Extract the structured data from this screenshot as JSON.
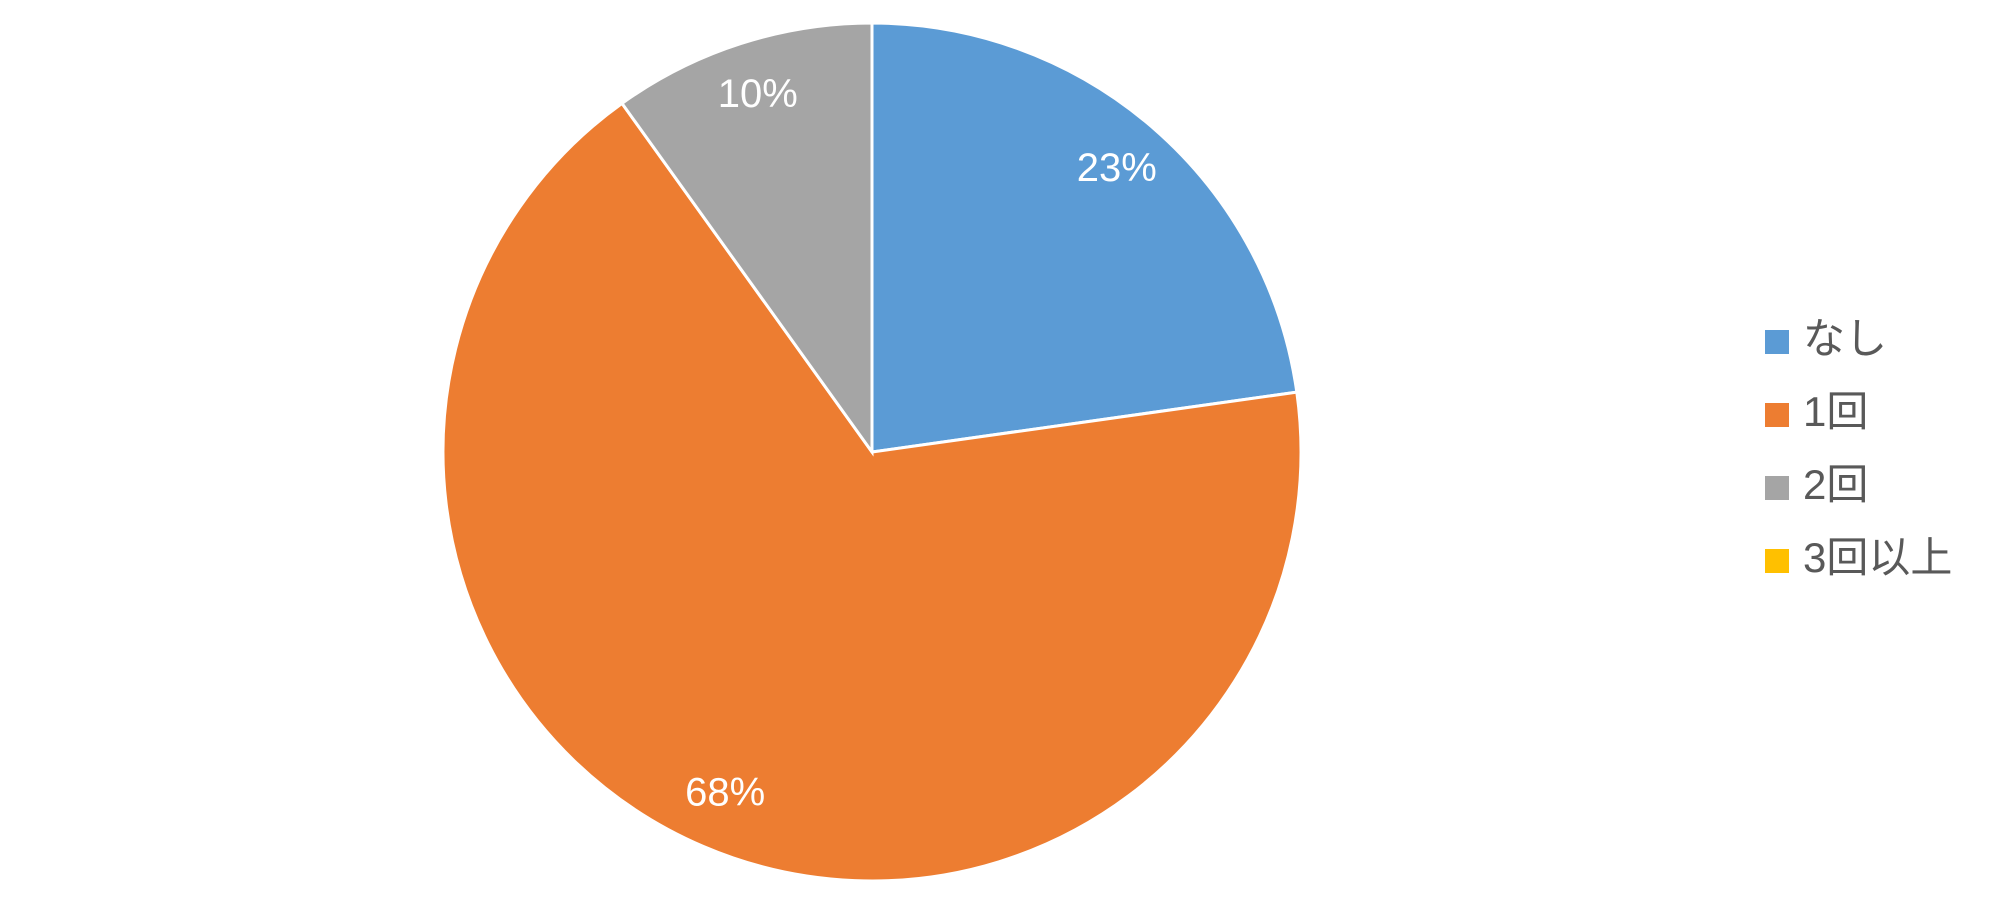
{
  "chart_data": {
    "type": "pie",
    "categories": [
      "なし",
      "1回",
      "2回",
      "3回以上"
    ],
    "values": [
      23,
      68,
      10,
      0
    ],
    "value_labels": [
      "23%",
      "68%",
      "10%",
      null
    ],
    "colors": [
      "#5b9bd5",
      "#ed7d31",
      "#a5a5a5",
      "#ffc000"
    ],
    "legend": "right"
  }
}
